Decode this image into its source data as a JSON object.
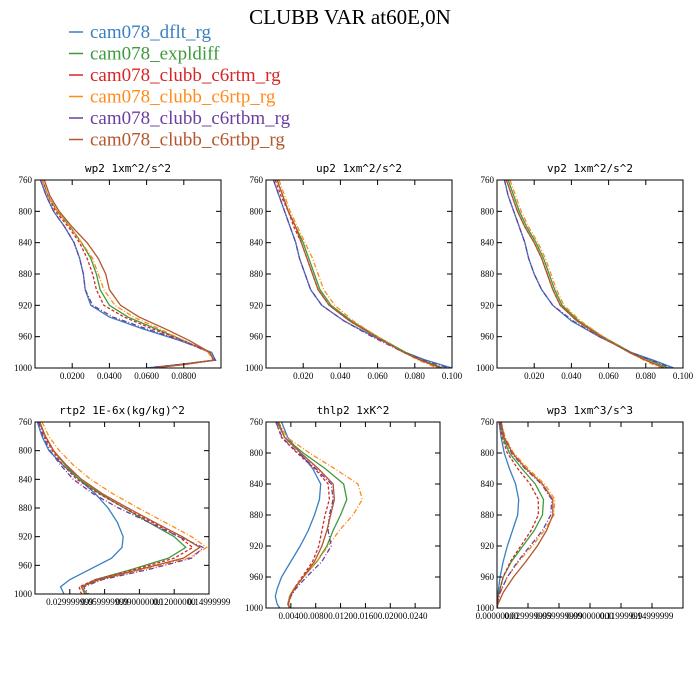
{
  "title": "CLUBB VAR at60E,0N",
  "series": [
    {
      "name": "cam078_dflt_rg",
      "color": "#3a7fc1",
      "dash": ""
    },
    {
      "name": "cam078_expldiff",
      "color": "#3d9b3d",
      "dash": ""
    },
    {
      "name": "cam078_clubb_c6rtm_rg",
      "color": "#d62728",
      "dash": "3,2"
    },
    {
      "name": "cam078_clubb_c6rtp_rg",
      "color": "#ff8c1a",
      "dash": "5,2,1,2"
    },
    {
      "name": "cam078_clubb_c6rtbm_rg",
      "color": "#6a3fa0",
      "dash": "5,2,1,2"
    },
    {
      "name": "cam078_clubb_c6rtbp_rg",
      "color": "#b5562a",
      "dash": ""
    }
  ],
  "chart_data": [
    {
      "type": "line",
      "title": "wp2",
      "units": "1xm^2/s^2",
      "xlim": [
        0,
        0.1
      ],
      "ylim": [
        760,
        1000
      ],
      "xticks": [
        0.02,
        0.04,
        0.06,
        0.08
      ],
      "xtick_labels": [
        "0.0200",
        "0.0400",
        "0.0600",
        "0.0800"
      ],
      "yticks": [
        760,
        800,
        840,
        880,
        920,
        960,
        1000
      ],
      "levels": [
        760,
        780,
        800,
        820,
        840,
        860,
        880,
        900,
        920,
        935,
        950,
        965,
        980,
        990,
        995,
        1000
      ],
      "series_values": [
        [
          0.003,
          0.006,
          0.01,
          0.016,
          0.021,
          0.024,
          0.026,
          0.027,
          0.03,
          0.04,
          0.058,
          0.078,
          0.095,
          0.097,
          0.08,
          0.06
        ],
        [
          0.004,
          0.007,
          0.012,
          0.019,
          0.025,
          0.03,
          0.033,
          0.035,
          0.04,
          0.05,
          0.065,
          0.08,
          0.094,
          0.096,
          0.08,
          0.062
        ],
        [
          0.004,
          0.007,
          0.011,
          0.018,
          0.024,
          0.028,
          0.031,
          0.033,
          0.037,
          0.048,
          0.063,
          0.08,
          0.094,
          0.096,
          0.082,
          0.064
        ],
        [
          0.004,
          0.007,
          0.012,
          0.019,
          0.025,
          0.031,
          0.034,
          0.037,
          0.043,
          0.053,
          0.067,
          0.08,
          0.093,
          0.096,
          0.082,
          0.064
        ],
        [
          0.003,
          0.006,
          0.01,
          0.016,
          0.021,
          0.024,
          0.026,
          0.027,
          0.031,
          0.042,
          0.06,
          0.079,
          0.094,
          0.097,
          0.08,
          0.06
        ],
        [
          0.005,
          0.008,
          0.013,
          0.02,
          0.028,
          0.034,
          0.038,
          0.04,
          0.046,
          0.056,
          0.07,
          0.083,
          0.094,
          0.096,
          0.082,
          0.064
        ]
      ]
    },
    {
      "type": "line",
      "title": "up2",
      "units": "1xm^2/s^2",
      "xlim": [
        0,
        0.1
      ],
      "ylim": [
        760,
        1000
      ],
      "xticks": [
        0.02,
        0.04,
        0.06,
        0.08,
        0.1
      ],
      "xtick_labels": [
        "0.020",
        "0.040",
        "0.060",
        "0.080",
        "0.100"
      ],
      "yticks": [
        760,
        800,
        840,
        880,
        920,
        960,
        1000
      ],
      "levels": [
        760,
        780,
        800,
        820,
        840,
        860,
        880,
        900,
        920,
        940,
        960,
        980,
        990,
        1000
      ],
      "series_values": [
        [
          0.004,
          0.007,
          0.01,
          0.013,
          0.016,
          0.018,
          0.021,
          0.024,
          0.03,
          0.042,
          0.058,
          0.075,
          0.086,
          0.1
        ],
        [
          0.006,
          0.009,
          0.012,
          0.016,
          0.02,
          0.023,
          0.026,
          0.029,
          0.035,
          0.046,
          0.06,
          0.075,
          0.084,
          0.095
        ],
        [
          0.005,
          0.008,
          0.012,
          0.015,
          0.019,
          0.022,
          0.025,
          0.028,
          0.034,
          0.045,
          0.059,
          0.074,
          0.083,
          0.094
        ],
        [
          0.007,
          0.01,
          0.013,
          0.017,
          0.021,
          0.025,
          0.028,
          0.031,
          0.037,
          0.047,
          0.06,
          0.074,
          0.082,
          0.092
        ],
        [
          0.004,
          0.007,
          0.01,
          0.013,
          0.016,
          0.018,
          0.021,
          0.024,
          0.03,
          0.042,
          0.057,
          0.074,
          0.085,
          0.098
        ],
        [
          0.006,
          0.009,
          0.012,
          0.016,
          0.019,
          0.022,
          0.025,
          0.028,
          0.034,
          0.045,
          0.059,
          0.074,
          0.083,
          0.094
        ]
      ]
    },
    {
      "type": "line",
      "title": "vp2",
      "units": "1xm^2/s^2",
      "xlim": [
        0,
        0.1
      ],
      "ylim": [
        760,
        1000
      ],
      "xticks": [
        0.02,
        0.04,
        0.06,
        0.08,
        0.1
      ],
      "xtick_labels": [
        "0.020",
        "0.040",
        "0.060",
        "0.080",
        "0.100"
      ],
      "yticks": [
        760,
        800,
        840,
        880,
        920,
        960,
        1000
      ],
      "levels": [
        760,
        780,
        800,
        820,
        840,
        860,
        880,
        900,
        920,
        940,
        960,
        980,
        990,
        1000
      ],
      "series_values": [
        [
          0.004,
          0.006,
          0.009,
          0.012,
          0.015,
          0.017,
          0.02,
          0.024,
          0.03,
          0.04,
          0.055,
          0.072,
          0.084,
          0.095
        ],
        [
          0.006,
          0.009,
          0.012,
          0.016,
          0.021,
          0.025,
          0.028,
          0.031,
          0.035,
          0.044,
          0.057,
          0.072,
          0.082,
          0.092
        ],
        [
          0.005,
          0.008,
          0.011,
          0.015,
          0.02,
          0.024,
          0.027,
          0.03,
          0.034,
          0.043,
          0.056,
          0.071,
          0.08,
          0.09
        ],
        [
          0.007,
          0.01,
          0.013,
          0.017,
          0.022,
          0.026,
          0.029,
          0.032,
          0.036,
          0.045,
          0.057,
          0.071,
          0.079,
          0.088
        ],
        [
          0.004,
          0.006,
          0.009,
          0.012,
          0.015,
          0.017,
          0.02,
          0.024,
          0.03,
          0.041,
          0.055,
          0.072,
          0.083,
          0.094
        ],
        [
          0.005,
          0.008,
          0.011,
          0.015,
          0.02,
          0.024,
          0.027,
          0.03,
          0.034,
          0.043,
          0.056,
          0.071,
          0.08,
          0.09
        ]
      ]
    },
    {
      "type": "line",
      "title": "rtp2",
      "units": "1E-6x(kg/kg)^2",
      "xlim": [
        0,
        0.15
      ],
      "ylim": [
        760,
        1000
      ],
      "xticks": [
        0.03,
        0.06,
        0.09,
        0.12,
        0.15
      ],
      "xtick_labels": [
        "0.029999999",
        "0.059999999",
        "0.090000000",
        "0.12000000",
        "0.14999999"
      ],
      "yticks": [
        760,
        800,
        840,
        880,
        920,
        960,
        1000
      ],
      "levels": [
        760,
        780,
        800,
        820,
        840,
        860,
        880,
        900,
        920,
        935,
        950,
        965,
        980,
        990,
        1000
      ],
      "series_values": [
        [
          0.002,
          0.006,
          0.012,
          0.024,
          0.038,
          0.052,
          0.063,
          0.071,
          0.076,
          0.075,
          0.066,
          0.048,
          0.03,
          0.022,
          0.025
        ],
        [
          0.004,
          0.009,
          0.016,
          0.026,
          0.038,
          0.056,
          0.077,
          0.098,
          0.12,
          0.13,
          0.115,
          0.085,
          0.052,
          0.04,
          0.045
        ],
        [
          0.004,
          0.008,
          0.015,
          0.024,
          0.036,
          0.055,
          0.077,
          0.101,
          0.124,
          0.136,
          0.12,
          0.088,
          0.052,
          0.038,
          0.04
        ],
        [
          0.006,
          0.012,
          0.021,
          0.033,
          0.048,
          0.067,
          0.089,
          0.112,
          0.135,
          0.148,
          0.132,
          0.095,
          0.056,
          0.04,
          0.044
        ],
        [
          0.003,
          0.007,
          0.013,
          0.022,
          0.033,
          0.05,
          0.072,
          0.098,
          0.124,
          0.145,
          0.135,
          0.1,
          0.058,
          0.042,
          0.046
        ],
        [
          0.004,
          0.009,
          0.016,
          0.027,
          0.04,
          0.058,
          0.08,
          0.103,
          0.127,
          0.142,
          0.128,
          0.092,
          0.055,
          0.04,
          0.043
        ]
      ]
    },
    {
      "type": "line",
      "title": "thlp2",
      "units": "1xK^2",
      "xlim": [
        0,
        0.028
      ],
      "ylim": [
        760,
        1000
      ],
      "xticks": [
        0.004,
        0.008,
        0.012,
        0.016,
        0.02,
        0.024
      ],
      "xtick_labels": [
        "0.0040",
        "0.0080",
        "0.0120",
        "0.0160",
        "0.0200",
        "0.0240"
      ],
      "yticks": [
        760,
        800,
        840,
        880,
        920,
        960,
        1000
      ],
      "levels": [
        760,
        780,
        800,
        820,
        840,
        860,
        880,
        900,
        920,
        940,
        960,
        975,
        985,
        995,
        1000
      ],
      "series_values": [
        [
          0.0025,
          0.0035,
          0.0055,
          0.0075,
          0.0088,
          0.0086,
          0.0078,
          0.0068,
          0.0055,
          0.004,
          0.0025,
          0.0018,
          0.0015,
          0.0018,
          0.0022
        ],
        [
          0.0018,
          0.003,
          0.006,
          0.0095,
          0.0125,
          0.013,
          0.012,
          0.0108,
          0.0098,
          0.0082,
          0.006,
          0.0045,
          0.0038,
          0.0035,
          0.0038
        ],
        [
          0.0016,
          0.0025,
          0.005,
          0.0078,
          0.01,
          0.0102,
          0.0095,
          0.009,
          0.0085,
          0.0075,
          0.0058,
          0.0045,
          0.0038,
          0.0036,
          0.0038
        ],
        [
          0.002,
          0.0034,
          0.007,
          0.011,
          0.0148,
          0.0155,
          0.014,
          0.0118,
          0.01,
          0.0082,
          0.006,
          0.0045,
          0.0038,
          0.0035,
          0.0038
        ],
        [
          0.0016,
          0.0026,
          0.0052,
          0.008,
          0.0105,
          0.0108,
          0.0102,
          0.01,
          0.0105,
          0.009,
          0.0065,
          0.0048,
          0.004,
          0.0036,
          0.0038
        ],
        [
          0.002,
          0.003,
          0.0056,
          0.0084,
          0.0108,
          0.011,
          0.0104,
          0.0098,
          0.009,
          0.0078,
          0.006,
          0.0046,
          0.0039,
          0.0036,
          0.0038
        ]
      ]
    },
    {
      "type": "line",
      "title": "wp3",
      "units": "1xm^3/s^3",
      "xlim": [
        0,
        0.18
      ],
      "ylim": [
        760,
        1000
      ],
      "xticks": [
        0,
        0.03,
        0.06,
        0.09,
        0.12,
        0.15,
        0.18
      ],
      "xtick_labels": [
        "0.00000000",
        "0.029999999",
        "0.059999999",
        "0.090000000",
        "0.11999999",
        "0.14999999",
        ""
      ],
      "yticks": [
        760,
        800,
        840,
        880,
        920,
        960,
        1000
      ],
      "levels": [
        760,
        780,
        800,
        820,
        840,
        860,
        880,
        900,
        920,
        940,
        960,
        980,
        995,
        1000
      ],
      "series_values": [
        [
          0.002,
          0.004,
          0.007,
          0.012,
          0.018,
          0.021,
          0.02,
          0.015,
          0.01,
          0.006,
          0.003,
          0.001,
          0.0,
          0.0
        ],
        [
          0.003,
          0.006,
          0.012,
          0.024,
          0.037,
          0.045,
          0.044,
          0.036,
          0.025,
          0.014,
          0.006,
          0.002,
          0.0,
          0.0
        ],
        [
          0.002,
          0.005,
          0.01,
          0.02,
          0.032,
          0.04,
          0.04,
          0.033,
          0.023,
          0.013,
          0.006,
          0.002,
          0.0,
          0.0
        ],
        [
          0.004,
          0.008,
          0.016,
          0.03,
          0.046,
          0.056,
          0.055,
          0.046,
          0.034,
          0.021,
          0.01,
          0.003,
          0.0,
          0.0
        ],
        [
          0.003,
          0.007,
          0.014,
          0.027,
          0.043,
          0.053,
          0.052,
          0.044,
          0.032,
          0.02,
          0.01,
          0.003,
          0.0,
          0.0
        ],
        [
          0.004,
          0.007,
          0.015,
          0.028,
          0.044,
          0.054,
          0.054,
          0.048,
          0.039,
          0.028,
          0.016,
          0.006,
          0.001,
          0.0
        ]
      ]
    }
  ]
}
